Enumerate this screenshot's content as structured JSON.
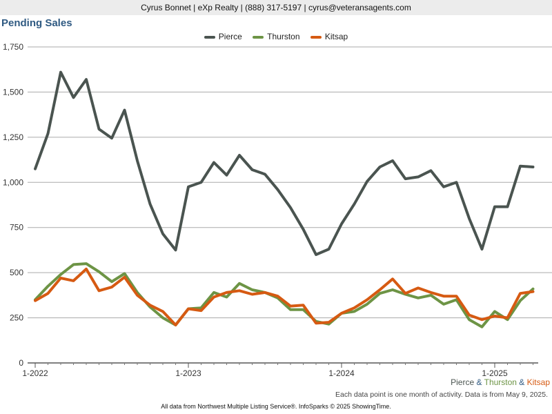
{
  "header": {
    "contact": "Cyrus Bonnet | eXp Realty | (888) 317-5197 | cyrus@veteransagents.com"
  },
  "colors": {
    "pierce": "#4a5450",
    "thurston": "#6d9445",
    "kitsap": "#d65a12",
    "title": "#2f5a82"
  },
  "compare": {
    "pierce": "Pierce",
    "amp1": " & ",
    "thurston": "Thurston",
    "amp2": " & ",
    "kitsap": "Kitsap"
  },
  "note": "Each data point is one month of activity. Data is from May 9, 2025.",
  "footer": "All data from Northwest Multiple Listing Service®. InfoSparks © 2025 ShowingTime.",
  "chart_data": {
    "type": "line",
    "title": "Pending Sales",
    "xlabel": "",
    "ylabel": "",
    "ylim": [
      0,
      1750
    ],
    "yticks": [
      0,
      250,
      500,
      750,
      1000,
      1250,
      1500,
      1750
    ],
    "ytick_labels": [
      "0",
      "250",
      "500",
      "750",
      "1,000",
      "1,250",
      "1,500",
      "1,750"
    ],
    "xticks": [
      "2022-01",
      "2023-01",
      "2024-01",
      "2025-01"
    ],
    "xtick_labels": [
      "1-2022",
      "1-2023",
      "1-2024",
      "1-2025"
    ],
    "grid": "horizontal",
    "legend": "top-center",
    "x": [
      "2022-01",
      "2022-02",
      "2022-03",
      "2022-04",
      "2022-05",
      "2022-06",
      "2022-07",
      "2022-08",
      "2022-09",
      "2022-10",
      "2022-11",
      "2022-12",
      "2023-01",
      "2023-02",
      "2023-03",
      "2023-04",
      "2023-05",
      "2023-06",
      "2023-07",
      "2023-08",
      "2023-09",
      "2023-10",
      "2023-11",
      "2023-12",
      "2024-01",
      "2024-02",
      "2024-03",
      "2024-04",
      "2024-05",
      "2024-06",
      "2024-07",
      "2024-08",
      "2024-09",
      "2024-10",
      "2024-11",
      "2024-12",
      "2025-01",
      "2025-02",
      "2025-03",
      "2025-04"
    ],
    "series": [
      {
        "name": "Pierce",
        "color": "#4a5450",
        "values": [
          1075,
          1270,
          1610,
          1470,
          1570,
          1295,
          1245,
          1400,
          1120,
          880,
          715,
          625,
          975,
          1000,
          1110,
          1040,
          1150,
          1070,
          1045,
          960,
          860,
          740,
          600,
          630,
          770,
          880,
          1005,
          1085,
          1120,
          1020,
          1030,
          1065,
          975,
          1000,
          800,
          630,
          865,
          865,
          1090,
          1085
        ]
      },
      {
        "name": "Thurston",
        "color": "#6d9445",
        "values": [
          350,
          425,
          490,
          545,
          550,
          505,
          450,
          495,
          390,
          310,
          250,
          210,
          300,
          305,
          390,
          365,
          440,
          405,
          390,
          360,
          295,
          295,
          230,
          215,
          275,
          285,
          325,
          385,
          405,
          380,
          360,
          375,
          325,
          350,
          240,
          200,
          285,
          240,
          345,
          410
        ]
      },
      {
        "name": "Kitsap",
        "color": "#d65a12",
        "values": [
          345,
          385,
          470,
          455,
          520,
          400,
          420,
          475,
          375,
          320,
          285,
          210,
          300,
          290,
          365,
          390,
          400,
          380,
          390,
          370,
          315,
          320,
          220,
          225,
          275,
          305,
          350,
          405,
          465,
          385,
          415,
          390,
          370,
          370,
          265,
          240,
          260,
          250,
          385,
          395
        ]
      }
    ]
  }
}
